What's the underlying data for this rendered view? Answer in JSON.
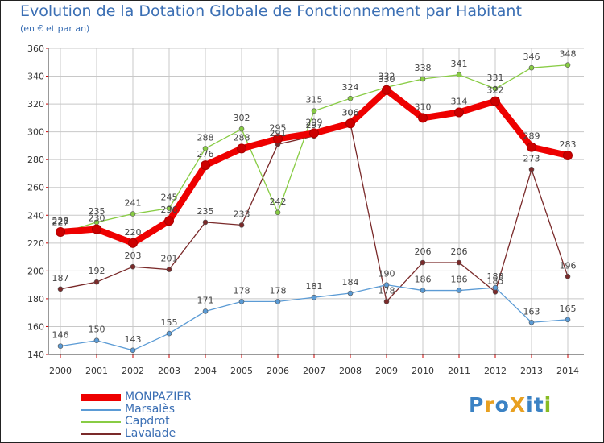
{
  "title": "Evolution de la Dotation Globale de Fonctionnement par Habitant",
  "subtitle": "(en € et par an)",
  "logo": {
    "text": "ProXiti"
  },
  "colors": {
    "MONPAZIER": "#ee0000",
    "Marsalès": "#5b9bd5",
    "Capdrot": "#88cc44",
    "Lavalade": "#7a2a2a",
    "grid": "#c8c8c8",
    "title": "#3b6fb4"
  },
  "chart_data": {
    "type": "line",
    "title": "Evolution de la Dotation Globale de Fonctionnement par Habitant",
    "subtitle": "(en € et par an)",
    "xlabel": "",
    "ylabel": "",
    "x": [
      "2000",
      "2001",
      "2002",
      "2003",
      "2004",
      "2005",
      "2006",
      "2007",
      "2008",
      "2009",
      "2010",
      "2011",
      "2012",
      "2013",
      "2014"
    ],
    "ylim": [
      140,
      360
    ],
    "yticks": [
      140,
      160,
      180,
      200,
      220,
      240,
      260,
      280,
      300,
      320,
      340,
      360
    ],
    "grid": true,
    "legend": "bottom-left",
    "series": [
      {
        "name": "MONPAZIER",
        "values": [
          228,
          230,
          220,
          236,
          276,
          288,
          295,
          299,
          306,
          330,
          310,
          314,
          322,
          289,
          283
        ],
        "labels": [
          "228",
          "230",
          "220",
          "236",
          "276",
          "288",
          "295",
          "299",
          "306",
          "330",
          "310",
          "314",
          "322",
          "289",
          "283"
        ]
      },
      {
        "name": "Marsalès",
        "values": [
          146,
          150,
          143,
          155,
          171,
          178,
          178,
          181,
          184,
          190,
          186,
          186,
          188,
          163,
          165
        ],
        "labels": [
          "146",
          "150",
          "143",
          "155",
          "171",
          "178",
          "178",
          "181",
          "184",
          "190",
          "186",
          "186",
          "188",
          "163",
          "165"
        ]
      },
      {
        "name": "Capdrot",
        "values": [
          227,
          235,
          241,
          245,
          288,
          302,
          242,
          315,
          324,
          332,
          338,
          341,
          331,
          346,
          348
        ],
        "labels": [
          "227",
          "235",
          "241",
          "245",
          "288",
          "302",
          "242",
          "315",
          "324",
          "332",
          "338",
          "341",
          "331",
          "346",
          "348"
        ]
      },
      {
        "name": "Lavalade",
        "values": [
          187,
          192,
          203,
          201,
          235,
          233,
          291,
          297,
          306,
          178,
          206,
          206,
          185,
          273,
          196
        ],
        "labels": [
          "187",
          "192",
          "203",
          "201",
          "235",
          "233",
          "291",
          "297",
          "306",
          "178",
          "206",
          "206",
          "185",
          "273",
          "196"
        ]
      }
    ]
  }
}
